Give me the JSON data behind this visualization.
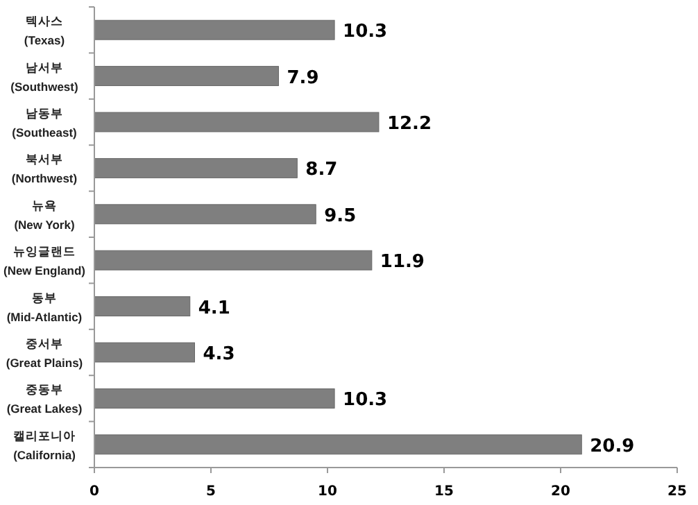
{
  "chart_data": {
    "type": "bar",
    "orientation": "horizontal",
    "categories": [
      "텍사스\n(Texas)",
      "남서부\n(Southwest)",
      "남동부\n(Southeast)",
      "북서부\n(Northwest)",
      "뉴욕\n(New York)",
      "뉴잉글랜드\n(New England)",
      "동부\n(Mid-Atlantic)",
      "중서부\n(Great Plains)",
      "중동부\n(Great Lakes)",
      "캘리포니아\n(California)"
    ],
    "values": [
      10.3,
      7.9,
      12.2,
      8.7,
      9.5,
      11.9,
      4.1,
      4.3,
      10.3,
      20.9
    ],
    "color": "#7f7f7f",
    "xlim": [
      0,
      25
    ],
    "xticks": [
      0,
      5,
      10,
      15,
      20,
      25
    ],
    "data_labels": true
  }
}
